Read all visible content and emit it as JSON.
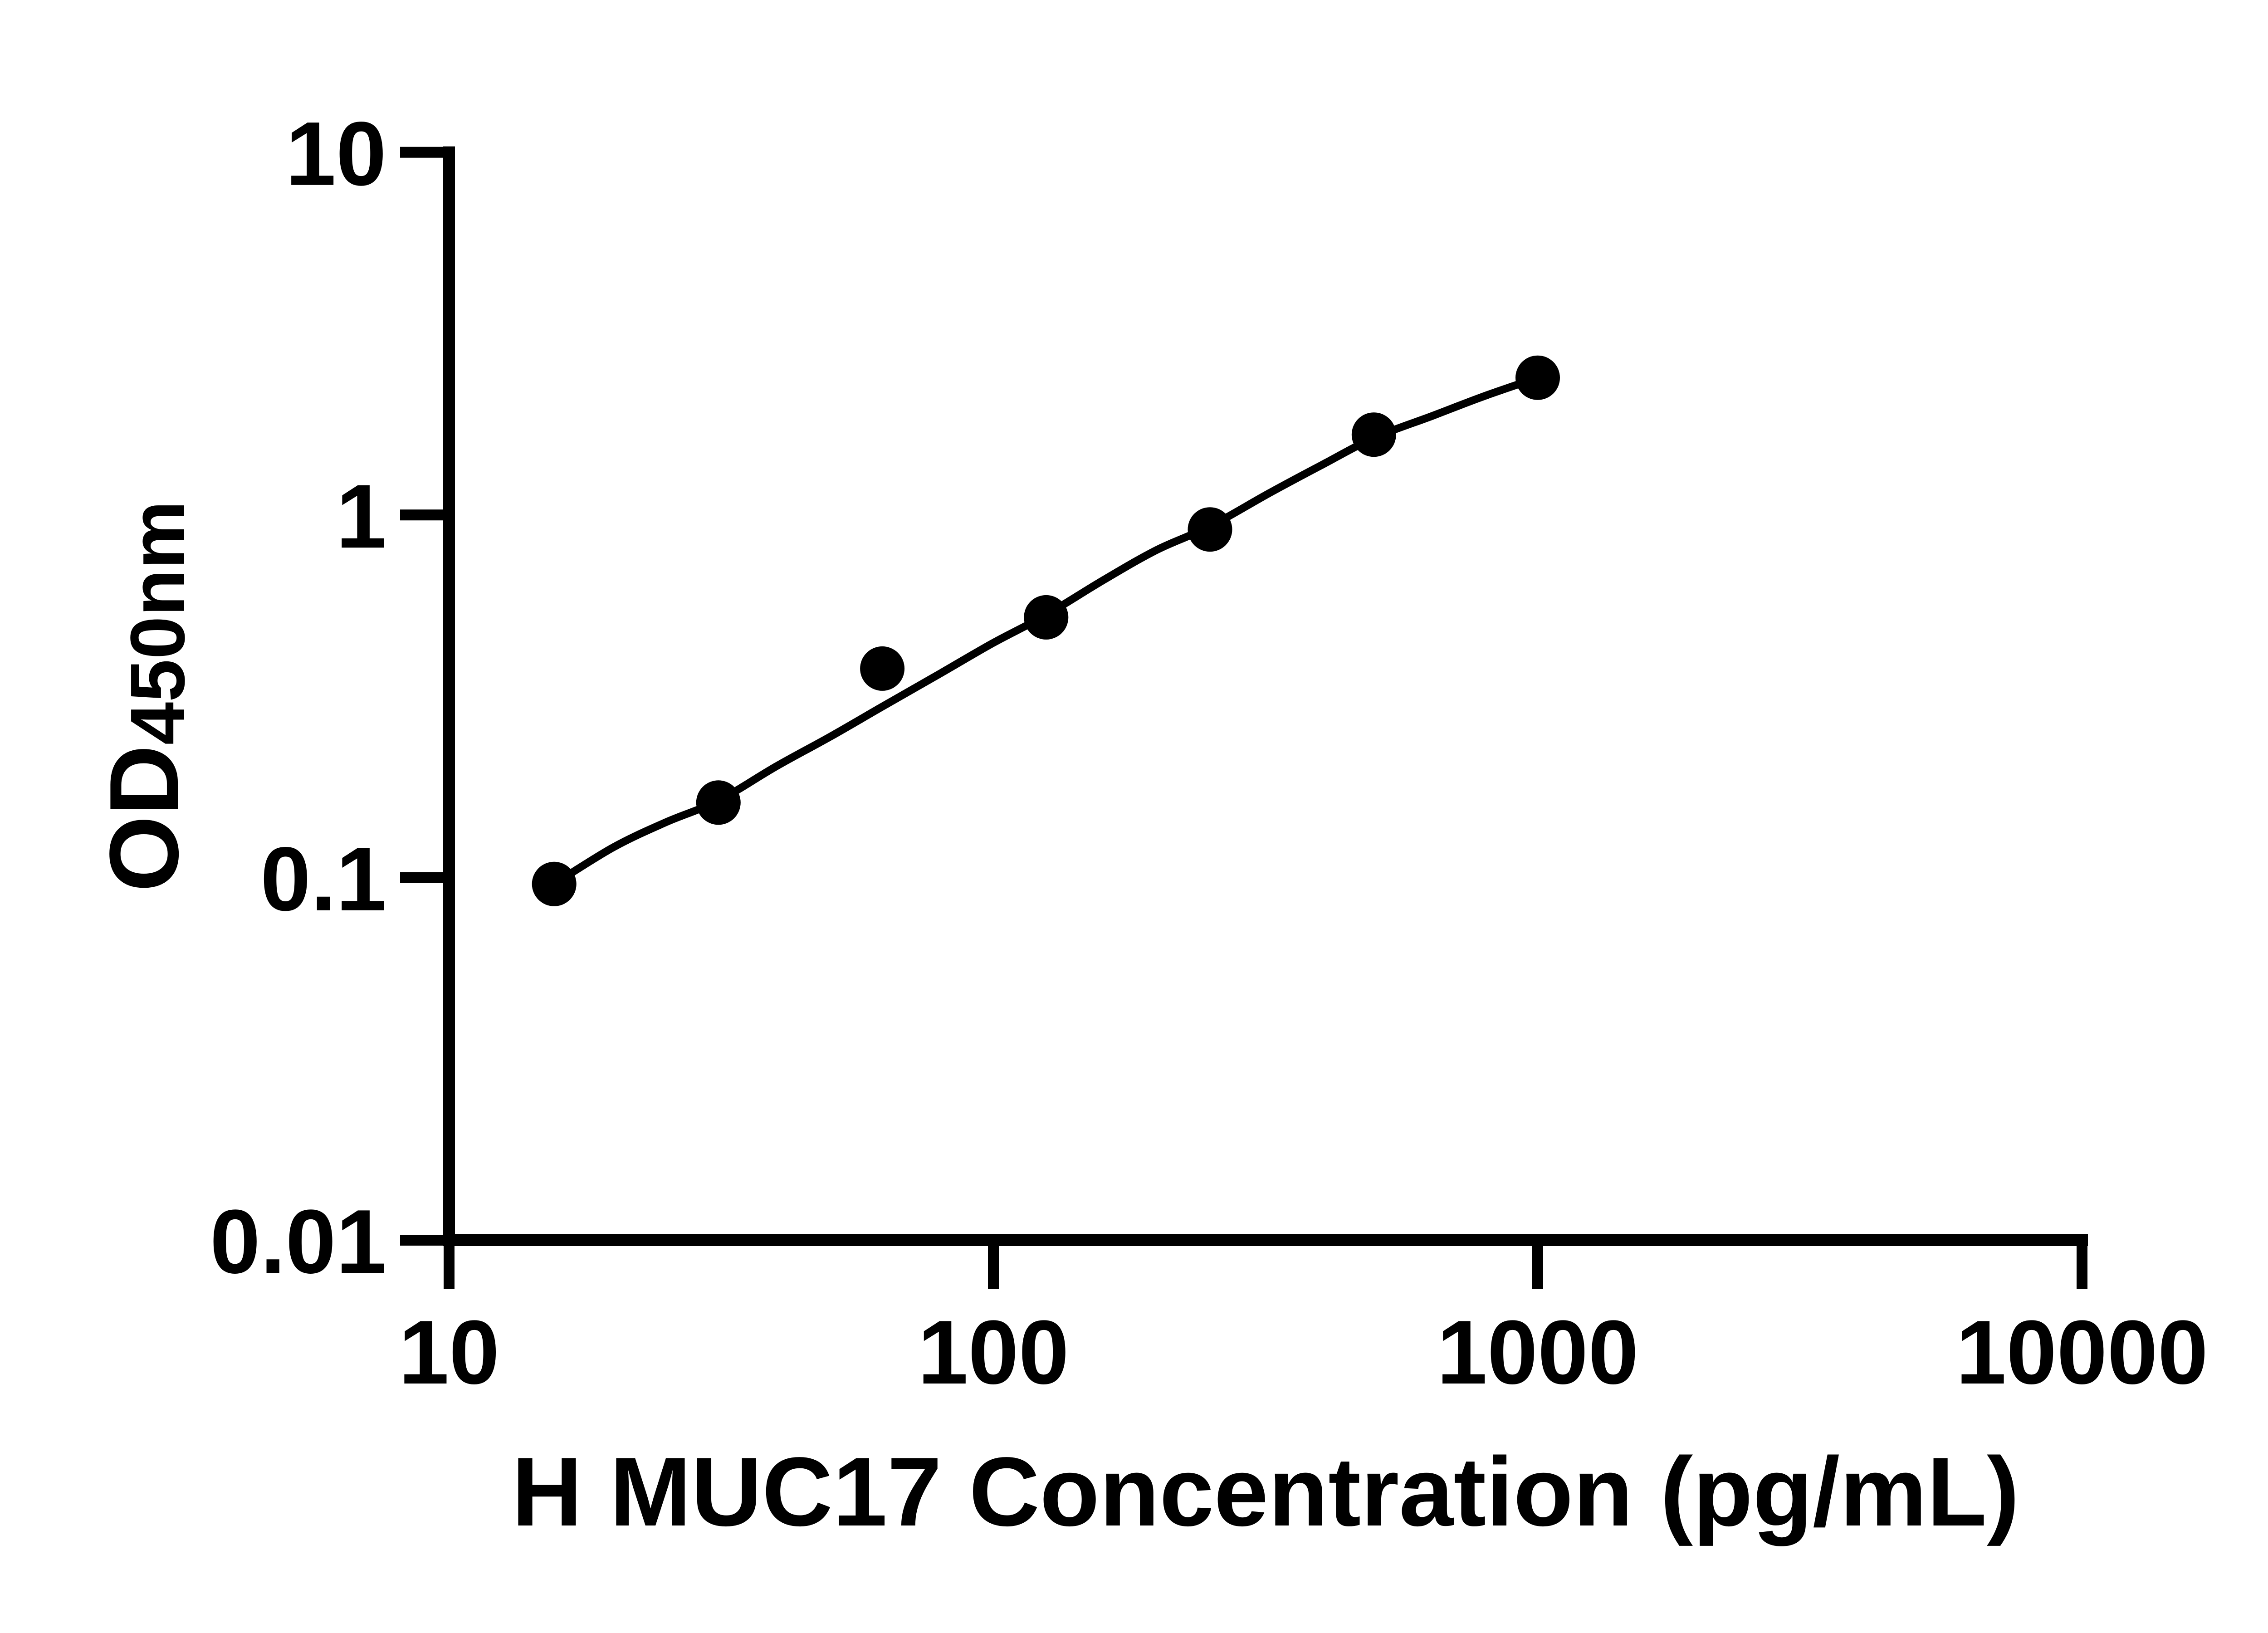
{
  "figure": {
    "background_color": "#ffffff",
    "ink_color": "#000000"
  },
  "chart_data": {
    "type": "scatter",
    "subtype": "elisa-standard-curve-with-fit-line",
    "title": "",
    "xlabel": "H MUC17 Concentration (pg/mL)",
    "ylabel_base": "OD",
    "ylabel_sub": "450nm",
    "x_scale": "log10",
    "y_scale": "log10",
    "xlim": [
      10,
      10000
    ],
    "ylim": [
      0.01,
      10
    ],
    "x_tick_values": [
      10,
      100,
      1000,
      10000
    ],
    "x_tick_labels": [
      "10",
      "100",
      "1000",
      "10000"
    ],
    "y_tick_values": [
      10,
      1,
      0.1,
      0.01
    ],
    "y_tick_labels": [
      "10",
      "1",
      "0.1",
      "0.01"
    ],
    "grid": false,
    "legend": "none",
    "marker_color": "#000000",
    "line_color": "#000000",
    "points": [
      {
        "x": 15.6,
        "od": 0.096
      },
      {
        "x": 31.25,
        "od": 0.161
      },
      {
        "x": 62.5,
        "od": 0.377
      },
      {
        "x": 125,
        "od": 0.522
      },
      {
        "x": 250,
        "od": 0.912
      },
      {
        "x": 500,
        "od": 1.665
      },
      {
        "x": 1000,
        "od": 2.39
      }
    ],
    "fit_curve": [
      [
        15.6,
        0.096
      ],
      [
        20,
        0.121
      ],
      [
        25,
        0.142
      ],
      [
        31.25,
        0.163
      ],
      [
        40,
        0.203
      ],
      [
        50,
        0.244
      ],
      [
        62.5,
        0.296
      ],
      [
        80,
        0.366
      ],
      [
        100,
        0.444
      ],
      [
        125,
        0.53
      ],
      [
        160,
        0.664
      ],
      [
        200,
        0.802
      ],
      [
        250,
        0.93
      ],
      [
        320,
        1.145
      ],
      [
        400,
        1.37
      ],
      [
        500,
        1.63
      ],
      [
        640,
        1.875
      ],
      [
        800,
        2.13
      ],
      [
        1000,
        2.39
      ]
    ]
  }
}
